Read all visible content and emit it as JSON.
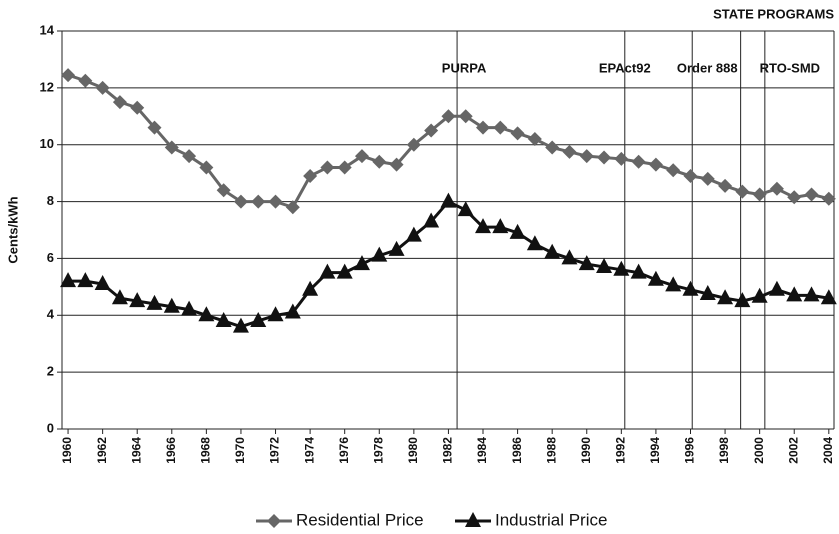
{
  "chart_data": {
    "type": "line",
    "y_label": "Cents/kWh",
    "header": "STATE PROGRAMS",
    "x": [
      1960,
      1961,
      1962,
      1963,
      1964,
      1965,
      1966,
      1967,
      1968,
      1969,
      1970,
      1971,
      1972,
      1973,
      1974,
      1975,
      1976,
      1977,
      1978,
      1979,
      1980,
      1981,
      1982,
      1983,
      1984,
      1985,
      1986,
      1987,
      1988,
      1989,
      1990,
      1991,
      1992,
      1993,
      1994,
      1995,
      1996,
      1997,
      1998,
      1999,
      2000,
      2001,
      2002,
      2003,
      2004
    ],
    "xlim": [
      1959.65,
      2004.3
    ],
    "xticks": [
      1960,
      1962,
      1964,
      1966,
      1968,
      1970,
      1972,
      1974,
      1976,
      1978,
      1980,
      1982,
      1984,
      1986,
      1988,
      1990,
      1992,
      1994,
      1996,
      1998,
      2000,
      2002,
      2004
    ],
    "ylim": [
      0,
      14
    ],
    "yticks": [
      0,
      2,
      4,
      6,
      8,
      10,
      12,
      14
    ],
    "grid": true,
    "series": [
      {
        "name": "Residential Price",
        "color": "#666666",
        "marker": "diamond",
        "values": [
          12.45,
          12.25,
          12.0,
          11.5,
          11.3,
          10.6,
          9.9,
          9.6,
          9.2,
          8.4,
          8.0,
          8.0,
          8.0,
          7.8,
          8.9,
          9.2,
          9.2,
          9.6,
          9.4,
          9.3,
          10.0,
          10.5,
          11.0,
          11.0,
          10.6,
          10.6,
          10.4,
          10.2,
          9.9,
          9.75,
          9.6,
          9.55,
          9.5,
          9.4,
          9.3,
          9.1,
          8.9,
          8.8,
          8.55,
          8.35,
          8.25,
          8.45,
          8.15,
          8.25,
          8.1
        ]
      },
      {
        "name": "Industrial Price",
        "color": "#111111",
        "marker": "triangle",
        "values": [
          5.2,
          5.2,
          5.1,
          4.6,
          4.5,
          4.4,
          4.3,
          4.2,
          4.0,
          3.8,
          3.6,
          3.8,
          4.0,
          4.1,
          4.9,
          5.5,
          5.5,
          5.8,
          6.1,
          6.3,
          6.8,
          7.3,
          8.0,
          7.7,
          7.1,
          7.1,
          6.9,
          6.5,
          6.2,
          6.0,
          5.8,
          5.7,
          5.6,
          5.5,
          5.25,
          5.05,
          4.9,
          4.75,
          4.6,
          4.5,
          4.65,
          4.9,
          4.7,
          4.7,
          4.6
        ]
      }
    ],
    "annotations": [
      {
        "x": 1982.5,
        "label": "PURPA"
      },
      {
        "x": 1992.2,
        "label": "EPAct92"
      },
      {
        "x": 1996.1,
        "label": "Order 888"
      },
      {
        "x": 1998.9
      },
      {
        "x": 2000.3,
        "label": "RTO-SMD"
      }
    ]
  }
}
